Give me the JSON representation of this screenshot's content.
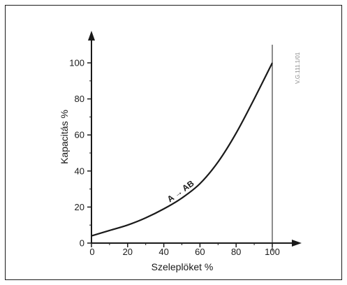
{
  "chart_data": {
    "type": "line",
    "title": "",
    "xlabel": "Szeleplöket  %",
    "ylabel": "Kapacitás  %",
    "xlim": [
      0,
      100
    ],
    "ylim": [
      0,
      100
    ],
    "x_ticks": [
      "0",
      "20",
      "40",
      "60",
      "80",
      "100"
    ],
    "y_ticks": [
      "0",
      "20",
      "40",
      "60",
      "80",
      "100"
    ],
    "series": [
      {
        "x": [
          0,
          10,
          20,
          30,
          40,
          50,
          60,
          70,
          80,
          90,
          100
        ],
        "y": [
          4,
          7,
          10,
          14,
          19,
          25,
          33,
          45,
          61,
          80,
          100
        ]
      }
    ],
    "annotation": "A → AB",
    "side_code": "V.G.111.1/01",
    "grid": false,
    "colors": {
      "line": "#1a1a1a",
      "text": "#1a1a1a",
      "code": "#8a8a8a"
    }
  }
}
